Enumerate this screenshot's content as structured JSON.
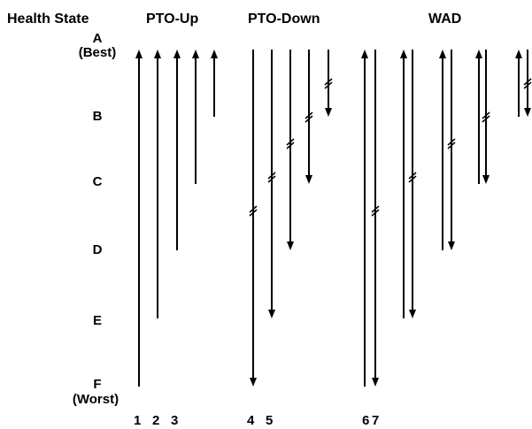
{
  "header": {
    "health_state": "Health State",
    "groups": [
      "PTO-Up",
      "PTO-Down",
      "WAD"
    ]
  },
  "states": [
    {
      "letter": "A",
      "sub": "(Best)"
    },
    {
      "letter": "B",
      "sub": ""
    },
    {
      "letter": "C",
      "sub": ""
    },
    {
      "letter": "D",
      "sub": ""
    },
    {
      "letter": "E",
      "sub": ""
    },
    {
      "letter": "F",
      "sub": "(Worst)"
    }
  ],
  "column_numbers": [
    "1",
    "2",
    "3",
    "4",
    "5",
    "6",
    "7"
  ],
  "arrows": {
    "pto_up": [
      {
        "from": "F",
        "to": "A"
      },
      {
        "from": "E",
        "to": "A"
      },
      {
        "from": "D",
        "to": "A"
      },
      {
        "from": "C",
        "to": "A"
      },
      {
        "from": "B",
        "to": "A"
      }
    ],
    "pto_down": [
      {
        "from": "A",
        "to": "F",
        "break": "C/D"
      },
      {
        "from": "A",
        "to": "E",
        "break": "C"
      },
      {
        "from": "A",
        "to": "D",
        "break": "B/C"
      },
      {
        "from": "A",
        "to": "C",
        "break": "B"
      },
      {
        "from": "A",
        "to": "B",
        "break": "A/B"
      }
    ],
    "wad_pairs": [
      {
        "span": [
          "A",
          "F"
        ],
        "break": "C/D"
      },
      {
        "span": [
          "A",
          "E"
        ],
        "break": "C"
      },
      {
        "span": [
          "A",
          "D"
        ],
        "break": "B/C"
      },
      {
        "span": [
          "A",
          "C"
        ],
        "break": "B"
      },
      {
        "span": [
          "A",
          "B"
        ],
        "break": "A/B"
      }
    ]
  }
}
